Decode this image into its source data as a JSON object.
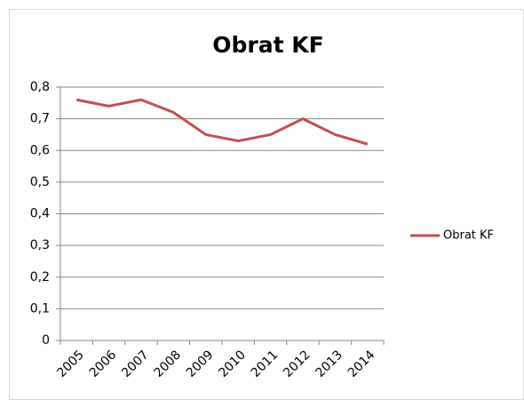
{
  "chart_data": {
    "type": "line",
    "title": "Obrat KF",
    "categories": [
      "2005",
      "2006",
      "2007",
      "2008",
      "2009",
      "2010",
      "2011",
      "2012",
      "2013",
      "2014"
    ],
    "series": [
      {
        "name": "Obrat KF",
        "color": "#c0504d",
        "values": [
          0.76,
          0.74,
          0.76,
          0.72,
          0.65,
          0.63,
          0.65,
          0.7,
          0.65,
          0.62
        ]
      }
    ],
    "ylim": [
      0,
      0.8
    ],
    "yticks": [
      0,
      {
        "value": 0.1,
        "label": "0,1"
      },
      {
        "value": 0.2,
        "label": "0,2"
      },
      {
        "value": 0.3,
        "label": "0,3"
      },
      {
        "value": 0.4,
        "label": "0,4"
      },
      {
        "value": 0.5,
        "label": "0,5"
      },
      {
        "value": 0.6,
        "label": "0,6"
      },
      {
        "value": 0.7,
        "label": "0,7"
      },
      {
        "value": 0.8,
        "label": "0,8"
      }
    ],
    "grid": true,
    "legend": "right"
  }
}
